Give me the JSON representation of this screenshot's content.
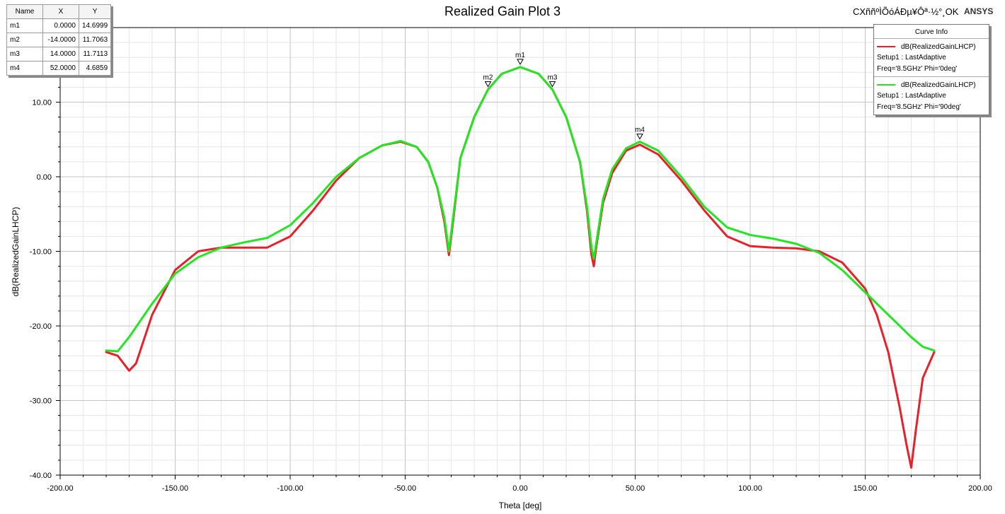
{
  "header": {
    "title": "Realized Gain Plot 3",
    "status": "CXññºÌÕóÁÐµ¥Ôª·½°¸OK",
    "brand": "ANSYS"
  },
  "marker_table": {
    "headers": [
      "Name",
      "X",
      "Y"
    ],
    "rows": [
      [
        "m1",
        "0.0000",
        "14.6999"
      ],
      [
        "m2",
        "-14.0000",
        "11.7063"
      ],
      [
        "m3",
        "14.0000",
        "11.7113"
      ],
      [
        "m4",
        "52.0000",
        "4.6859"
      ]
    ]
  },
  "legend": {
    "title": "Curve Info",
    "entries": [
      {
        "label": "dB(RealizedGainLHCP)",
        "setup": "Setup1 : LastAdaptive",
        "params": "Freq='8.5GHz' Phi='0deg'",
        "color": "#e8202a"
      },
      {
        "label": "dB(RealizedGainLHCP)",
        "setup": "Setup1 : LastAdaptive",
        "params": "Freq='8.5GHz' Phi='90deg'",
        "color": "#22e622"
      }
    ]
  },
  "chart_data": {
    "type": "line",
    "title": "Realized Gain Plot 3",
    "xlabel": "Theta [deg]",
    "ylabel": "dB(RealizedGainLHCP)",
    "xlim": [
      -200,
      200
    ],
    "ylim": [
      -40,
      20
    ],
    "xticks": [
      -200,
      -150,
      -100,
      -50,
      0,
      50,
      100,
      150,
      200
    ],
    "xtick_labels": [
      "-200.00",
      "-150.00",
      "-100.00",
      "-50.00",
      "0.00",
      "50.00",
      "100.00",
      "150.00",
      "200.00"
    ],
    "yticks": [
      -40,
      -30,
      -20,
      -10,
      0,
      10
    ],
    "ytick_labels": [
      "-40.00",
      "-30.00",
      "-20.00",
      "-10.00",
      "0.00",
      "10.00"
    ],
    "grid": true,
    "legend_position": "top-right",
    "series": [
      {
        "name": "dB(RealizedGainLHCP) Setup1 : LastAdaptive Freq='8.5GHz' Phi='0deg'",
        "color": "#e8202a",
        "x": [
          -180,
          -175,
          -170,
          -167,
          -160,
          -150,
          -140,
          -130,
          -120,
          -110,
          -100,
          -90,
          -80,
          -70,
          -60,
          -52,
          -45,
          -40,
          -36,
          -33,
          -31,
          -29,
          -26,
          -20,
          -14,
          -8,
          0,
          8,
          14,
          20,
          26,
          29,
          31,
          32,
          33,
          36,
          40,
          46,
          52,
          60,
          70,
          80,
          90,
          100,
          110,
          120,
          130,
          140,
          150,
          155,
          160,
          165,
          168,
          170,
          172,
          175,
          180
        ],
        "y": [
          -23.5,
          -24.0,
          -26.0,
          -25.0,
          -18.5,
          -12.5,
          -10.0,
          -9.5,
          -9.5,
          -9.5,
          -8.0,
          -4.5,
          -0.5,
          2.5,
          4.2,
          4.7,
          4.0,
          2.0,
          -1.5,
          -6.0,
          -10.5,
          -5.5,
          2.5,
          8.0,
          11.7,
          13.8,
          14.7,
          13.8,
          11.7,
          8.0,
          2.0,
          -4.5,
          -10.5,
          -12.0,
          -9.5,
          -3.5,
          0.5,
          3.5,
          4.3,
          3.0,
          -0.5,
          -4.5,
          -8.0,
          -9.3,
          -9.5,
          -9.6,
          -10.0,
          -11.5,
          -15.0,
          -18.5,
          -23.5,
          -31.0,
          -36.0,
          -39.0,
          -34.0,
          -27.0,
          -23.5
        ]
      },
      {
        "name": "dB(RealizedGainLHCP) Setup1 : LastAdaptive Freq='8.5GHz' Phi='90deg'",
        "color": "#22e622",
        "x": [
          -180,
          -175,
          -170,
          -160,
          -150,
          -140,
          -130,
          -120,
          -110,
          -100,
          -90,
          -80,
          -70,
          -60,
          -52,
          -45,
          -40,
          -36,
          -33,
          -31,
          -29,
          -26,
          -20,
          -14,
          -8,
          0,
          8,
          14,
          20,
          26,
          29,
          31,
          32,
          33,
          36,
          40,
          46,
          52,
          60,
          70,
          80,
          90,
          100,
          110,
          120,
          130,
          140,
          150,
          160,
          170,
          175,
          180
        ],
        "y": [
          -23.3,
          -23.4,
          -21.5,
          -17.0,
          -13.0,
          -10.8,
          -9.5,
          -8.8,
          -8.2,
          -6.5,
          -3.5,
          0.0,
          2.5,
          4.2,
          4.8,
          4.0,
          2.0,
          -1.5,
          -5.5,
          -10.0,
          -5.0,
          2.5,
          8.0,
          11.7,
          13.8,
          14.7,
          13.8,
          11.7,
          8.0,
          2.0,
          -4.0,
          -9.5,
          -11.0,
          -9.0,
          -3.0,
          1.0,
          3.8,
          4.7,
          3.5,
          0.0,
          -4.0,
          -6.8,
          -7.8,
          -8.3,
          -9.0,
          -10.2,
          -12.5,
          -15.5,
          -18.5,
          -21.5,
          -22.8,
          -23.3
        ]
      }
    ],
    "markers": [
      {
        "name": "m1",
        "x": 0.0,
        "y": 14.6999
      },
      {
        "name": "m2",
        "x": -14.0,
        "y": 11.7063
      },
      {
        "name": "m3",
        "x": 14.0,
        "y": 11.7113
      },
      {
        "name": "m4",
        "x": 52.0,
        "y": 4.6859
      }
    ]
  }
}
